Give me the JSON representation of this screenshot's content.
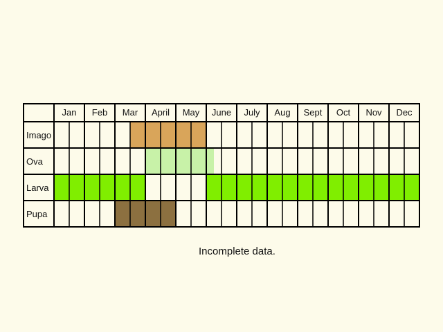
{
  "months": [
    "Jan",
    "Feb",
    "Mar",
    "April",
    "May",
    "June",
    "July",
    "Aug",
    "Sept",
    "Oct",
    "Nov",
    "Dec"
  ],
  "stages": [
    {
      "label": "Imago",
      "color": "#d9a55a",
      "periods": [
        [
          2.5,
          5
        ]
      ]
    },
    {
      "label": "Ova",
      "color": "#c8f2a8",
      "periods": [
        [
          3,
          5.25
        ]
      ]
    },
    {
      "label": "Larva",
      "color": "#80ee00",
      "periods": [
        [
          0,
          3
        ],
        [
          5,
          12
        ]
      ]
    },
    {
      "label": "Pupa",
      "color": "#8c7040",
      "periods": [
        [
          2,
          4
        ]
      ]
    }
  ],
  "note": "Incomplete data."
}
